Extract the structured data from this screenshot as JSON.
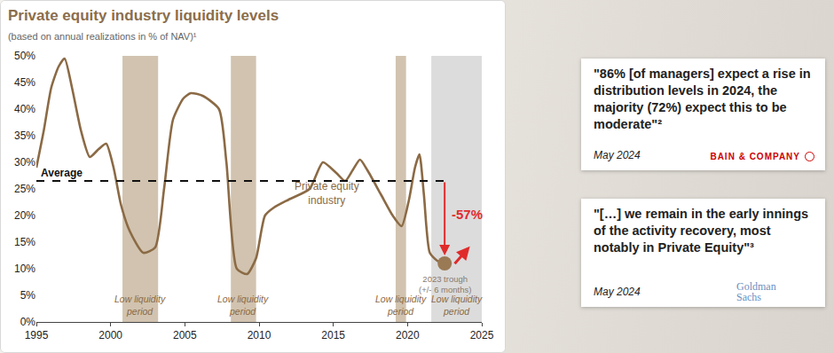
{
  "chart_data": {
    "type": "line",
    "title": "Private equity industry liquidity levels",
    "subtitle": "(based on annual realizations in % of NAV)¹",
    "x": [
      1995,
      1995.5,
      1996,
      1996.5,
      1996.9,
      1997.4,
      1998,
      1998.6,
      1999.2,
      1999.7,
      2000.2,
      2000.7,
      2001.3,
      2002.2,
      2003,
      2003.6,
      2004.2,
      2004.9,
      2005.4,
      2006.2,
      2007.3,
      2007.8,
      2008.5,
      2009.2,
      2009.8,
      2010.4,
      2011,
      2012,
      2013.4,
      2014.3,
      2015.2,
      2015.8,
      2016.3,
      2016.8,
      2017.3,
      2018.2,
      2019,
      2019.6,
      2020.1,
      2020.5,
      2020.8,
      2021.1,
      2021.5,
      2022,
      2022.5
    ],
    "series": [
      {
        "name": "Private equity industry",
        "color": "#8b6a45",
        "values": [
          29,
          36,
          44,
          48,
          49.5,
          44,
          36,
          31,
          32.5,
          33.5,
          29,
          22,
          17,
          13,
          14,
          25,
          38,
          42,
          43,
          42.5,
          40,
          30,
          10,
          9,
          12,
          20,
          21.5,
          23,
          25,
          30,
          28,
          26.5,
          28.5,
          30.5,
          28.5,
          24,
          20,
          18,
          23,
          29,
          31.5,
          24,
          13,
          11.5,
          11
        ]
      }
    ],
    "xlim": [
      1995,
      2025
    ],
    "xticks": [
      1995,
      2000,
      2005,
      2010,
      2015,
      2020,
      2025
    ],
    "ylim": [
      0,
      50
    ],
    "yticks": [
      {
        "value": 0,
        "label": "0%"
      },
      {
        "value": 5,
        "label": "5%"
      },
      {
        "value": 10,
        "label": "10%"
      },
      {
        "value": 15,
        "label": "15%"
      },
      {
        "value": 20,
        "label": "20%"
      },
      {
        "value": 25,
        "label": "25%"
      },
      {
        "value": 30,
        "label": "30%"
      },
      {
        "value": 35,
        "label": "35%"
      },
      {
        "value": 40,
        "label": "40%"
      },
      {
        "value": 45,
        "label": "45%"
      },
      {
        "value": 50,
        "label": "50%"
      }
    ],
    "grid": false,
    "average": {
      "value": 26.5,
      "label": "Average"
    },
    "change": {
      "value": -57,
      "label": "-57%"
    },
    "trough": {
      "label": "2023 trough (+/- 6 months)"
    },
    "bands": [
      {
        "start": 2000.8,
        "end": 2003.2,
        "label": "Low liquidity period",
        "color": "#c9b8a1"
      },
      {
        "start": 2008.1,
        "end": 2009.8,
        "label": "Low liquidity period",
        "color": "#c9b8a1"
      },
      {
        "start": 2019.2,
        "end": 2019.9,
        "label": "Low liquidity period",
        "color": "#c9b8a1"
      },
      {
        "start": 2021.6,
        "end": 2025,
        "label": "Low liquidity period",
        "color": "#d6d6d6"
      }
    ]
  },
  "quotes": [
    {
      "text": "\"86% [of managers] expect a rise in distribution levels in 2024, the majority (72%) expect this to be moderate\"²",
      "date": "May 2024",
      "source": "BAIN & COMPANY"
    },
    {
      "text": "\"[…] we remain in the early innings of the activity recovery, most notably in Private Equity\"³",
      "date": "May 2024",
      "source": "Goldman Sachs"
    }
  ]
}
